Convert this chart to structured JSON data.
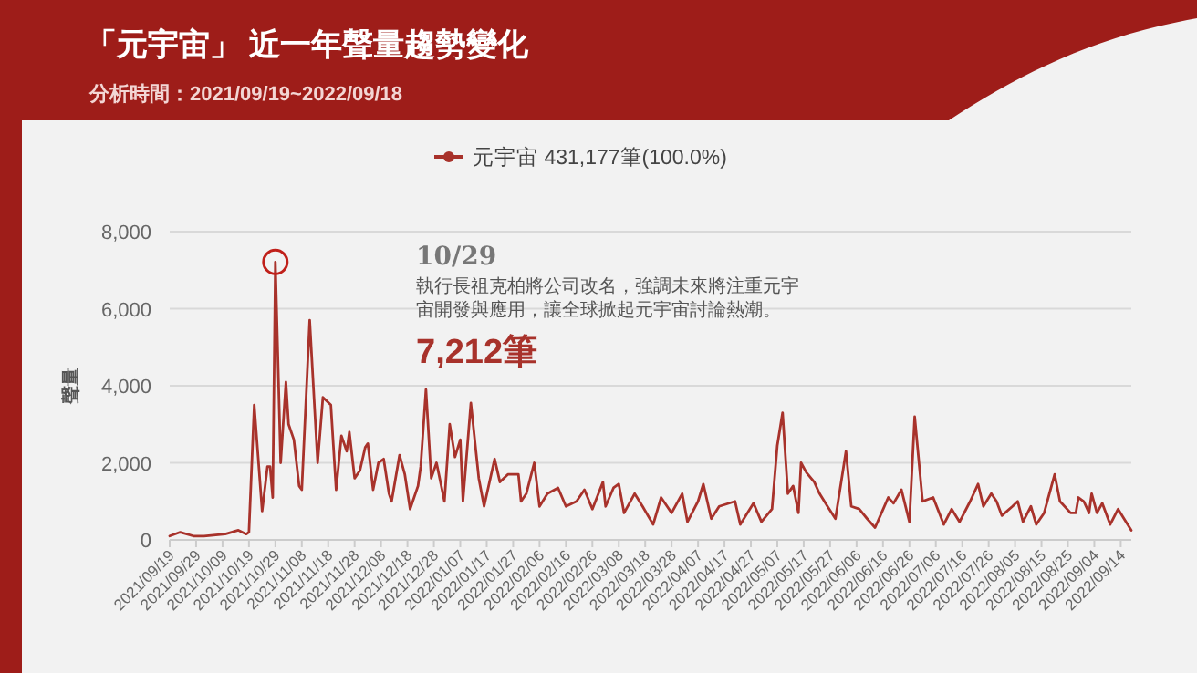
{
  "chart_data": {
    "type": "line",
    "title": "「元宇宙」 近一年聲量趨勢變化",
    "subtitle": "分析時間：2021/09/19~2022/09/18",
    "ylabel": "聲量",
    "legend": "top",
    "grid": "y",
    "xlim": [
      "2021-09-19",
      "2022-09-18"
    ],
    "ylim": [
      0,
      8000
    ],
    "yticks": [
      0,
      {
        "value": 2000,
        "label": "2,000"
      },
      {
        "value": 4000,
        "label": "4,000"
      },
      {
        "value": 6000,
        "label": "6,000"
      },
      {
        "value": 8000,
        "label": "8,000"
      }
    ],
    "xticks": [
      {
        "value": "2021-09-19",
        "label": "2021/09/19"
      },
      {
        "value": "2021-09-29",
        "label": "2021/09/29"
      },
      {
        "value": "2021-10-09",
        "label": "2021/10/09"
      },
      {
        "value": "2021-10-19",
        "label": "2021/10/19"
      },
      {
        "value": "2021-10-29",
        "label": "2021/10/29"
      },
      {
        "value": "2021-11-08",
        "label": "2021/11/08"
      },
      {
        "value": "2021-11-18",
        "label": "2021/11/18"
      },
      {
        "value": "2021-11-28",
        "label": "2021/11/28"
      },
      {
        "value": "2021-12-08",
        "label": "2021/12/08"
      },
      {
        "value": "2021-12-18",
        "label": "2021/12/18"
      },
      {
        "value": "2021-12-28",
        "label": "2021/12/28"
      },
      {
        "value": "2022-01-07",
        "label": "2022/01/07"
      },
      {
        "value": "2022-01-17",
        "label": "2022/01/17"
      },
      {
        "value": "2022-01-27",
        "label": "2022/01/27"
      },
      {
        "value": "2022-02-06",
        "label": "2022/02/06"
      },
      {
        "value": "2022-02-16",
        "label": "2022/02/16"
      },
      {
        "value": "2022-02-26",
        "label": "2022/02/26"
      },
      {
        "value": "2022-03-08",
        "label": "2022/03/08"
      },
      {
        "value": "2022-03-18",
        "label": "2022/03/18"
      },
      {
        "value": "2022-03-28",
        "label": "2022/03/28"
      },
      {
        "value": "2022-04-07",
        "label": "2022/04/07"
      },
      {
        "value": "2022-04-17",
        "label": "2022/04/17"
      },
      {
        "value": "2022-04-27",
        "label": "2022/04/27"
      },
      {
        "value": "2022-05-07",
        "label": "2022/05/07"
      },
      {
        "value": "2022-05-17",
        "label": "2022/05/17"
      },
      {
        "value": "2022-05-27",
        "label": "2022/05/27"
      },
      {
        "value": "2022-06-06",
        "label": "2022/06/06"
      },
      {
        "value": "2022-06-16",
        "label": "2022/06/16"
      },
      {
        "value": "2022-06-26",
        "label": "2022/06/26"
      },
      {
        "value": "2022-07-06",
        "label": "2022/07/06"
      },
      {
        "value": "2022-07-16",
        "label": "2022/07/16"
      },
      {
        "value": "2022-07-26",
        "label": "2022/07/26"
      },
      {
        "value": "2022-08-05",
        "label": "2022/08/05"
      },
      {
        "value": "2022-08-15",
        "label": "2022/08/15"
      },
      {
        "value": "2022-08-25",
        "label": "2022/08/25"
      },
      {
        "value": "2022-09-04",
        "label": "2022/09/04"
      },
      {
        "value": "2022-09-14",
        "label": "2022/09/14"
      }
    ],
    "x": [
      "2021-09-19",
      "2021-09-23",
      "2021-09-28",
      "2021-10-02",
      "2021-10-10",
      "2021-10-15",
      "2021-10-18",
      "2021-10-19",
      "2021-10-21",
      "2021-10-24",
      "2021-10-26",
      "2021-10-27",
      "2021-10-28",
      "2021-10-29",
      "2021-10-31",
      "2021-11-02",
      "2021-11-03",
      "2021-11-05",
      "2021-11-07",
      "2021-11-08",
      "2021-11-11",
      "2021-11-14",
      "2021-11-16",
      "2021-11-19",
      "2021-11-21",
      "2021-11-23",
      "2021-11-25",
      "2021-11-26",
      "2021-11-28",
      "2021-11-30",
      "2021-12-02",
      "2021-12-03",
      "2021-12-05",
      "2021-12-07",
      "2021-12-09",
      "2021-12-11",
      "2021-12-12",
      "2021-12-15",
      "2021-12-17",
      "2021-12-19",
      "2021-12-22",
      "2021-12-23",
      "2021-12-25",
      "2021-12-27",
      "2021-12-29",
      "2022-01-01",
      "2022-01-03",
      "2022-01-05",
      "2022-01-07",
      "2022-01-08",
      "2022-01-11",
      "2022-01-14",
      "2022-01-16",
      "2022-01-20",
      "2022-01-22",
      "2022-01-25",
      "2022-01-29",
      "2022-01-30",
      "2022-02-01",
      "2022-02-04",
      "2022-02-06",
      "2022-02-09",
      "2022-02-13",
      "2022-02-16",
      "2022-02-20",
      "2022-02-23",
      "2022-02-26",
      "2022-03-02",
      "2022-03-03",
      "2022-03-06",
      "2022-03-08",
      "2022-03-10",
      "2022-03-14",
      "2022-03-17",
      "2022-03-21",
      "2022-03-24",
      "2022-03-28",
      "2022-04-01",
      "2022-04-03",
      "2022-04-07",
      "2022-04-09",
      "2022-04-12",
      "2022-04-15",
      "2022-04-21",
      "2022-04-23",
      "2022-04-28",
      "2022-05-01",
      "2022-05-05",
      "2022-05-07",
      "2022-05-09",
      "2022-05-11",
      "2022-05-13",
      "2022-05-15",
      "2022-05-16",
      "2022-05-18",
      "2022-05-21",
      "2022-05-23",
      "2022-05-26",
      "2022-05-29",
      "2022-06-02",
      "2022-06-04",
      "2022-06-07",
      "2022-06-10",
      "2022-06-13",
      "2022-06-15",
      "2022-06-18",
      "2022-06-20",
      "2022-06-23",
      "2022-06-26",
      "2022-06-28",
      "2022-07-01",
      "2022-07-05",
      "2022-07-09",
      "2022-07-12",
      "2022-07-15",
      "2022-07-19",
      "2022-07-22",
      "2022-07-24",
      "2022-07-27",
      "2022-07-29",
      "2022-07-31",
      "2022-08-04",
      "2022-08-06",
      "2022-08-08",
      "2022-08-11",
      "2022-08-13",
      "2022-08-16",
      "2022-08-20",
      "2022-08-22",
      "2022-08-26",
      "2022-08-28",
      "2022-08-29",
      "2022-08-31",
      "2022-09-02",
      "2022-09-03",
      "2022-09-05",
      "2022-09-07",
      "2022-09-10",
      "2022-09-13",
      "2022-09-16",
      "2022-09-18"
    ],
    "series": [
      {
        "name": "元宇宙 431,177筆(100.0%)",
        "color": "#a8322b",
        "values": [
          100,
          200,
          100,
          100,
          150,
          250,
          150,
          200,
          3500,
          750,
          1900,
          1900,
          1100,
          7212,
          2000,
          4100,
          3000,
          2600,
          1400,
          1300,
          5700,
          2000,
          3700,
          3500,
          1300,
          2700,
          2300,
          2800,
          1600,
          1800,
          2400,
          2500,
          1300,
          2000,
          2100,
          1200,
          1000,
          2200,
          1700,
          800,
          1400,
          1900,
          3900,
          1600,
          2000,
          1000,
          3000,
          2150,
          2600,
          1000,
          3550,
          1600,
          870,
          2100,
          1500,
          1700,
          1700,
          1000,
          1200,
          2000,
          870,
          1200,
          1350,
          870,
          1000,
          1300,
          800,
          1500,
          870,
          1350,
          1450,
          700,
          1200,
          870,
          400,
          1100,
          700,
          1200,
          470,
          1000,
          1450,
          550,
          870,
          1000,
          400,
          950,
          470,
          800,
          2450,
          3300,
          1200,
          1400,
          700,
          2000,
          1750,
          1500,
          1200,
          870,
          550,
          2300,
          870,
          800,
          550,
          320,
          630,
          1100,
          950,
          1300,
          470,
          3200,
          1000,
          1100,
          400,
          800,
          470,
          1000,
          1450,
          870,
          1200,
          1000,
          630,
          870,
          1000,
          470,
          870,
          400,
          700,
          1700,
          1000,
          700,
          700,
          1100,
          1000,
          700,
          1200,
          700,
          950,
          400,
          800,
          470,
          250
        ]
      }
    ],
    "annotations": [
      "10/29",
      "執行長祖克柏將公司改名，強調未來將注重元宇宙開發與應用，讓全球掀起元宇宙討論熱潮。",
      "7,212筆"
    ]
  }
}
